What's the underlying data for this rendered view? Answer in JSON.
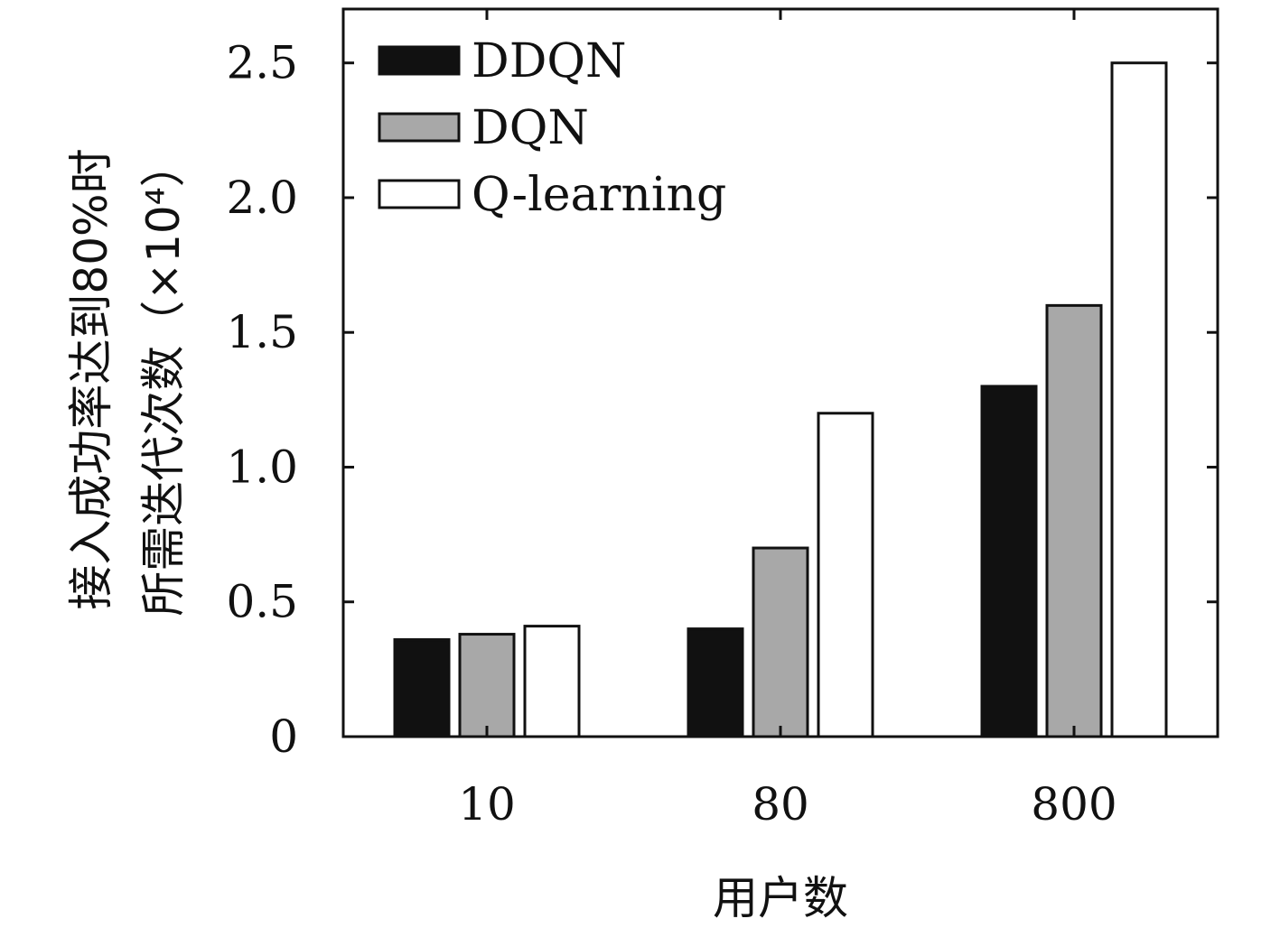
{
  "chart_data": {
    "type": "bar",
    "categories": [
      "10",
      "80",
      "800"
    ],
    "series": [
      {
        "name": "DDQN",
        "values": [
          0.36,
          0.4,
          1.3
        ],
        "color": "#111111"
      },
      {
        "name": "DQN",
        "values": [
          0.38,
          0.7,
          1.6
        ],
        "color": "#a8a8a8"
      },
      {
        "name": "Q-learning",
        "values": [
          0.41,
          1.2,
          2.5
        ],
        "color": "#ffffff"
      }
    ],
    "xlabel": "用户数",
    "ylabel_line1": "接入成功率达到80%时",
    "ylabel_line2": "所需迭代次数（×10⁴）",
    "ylim": [
      0,
      2.7
    ],
    "yticks": [
      0,
      0.5,
      1.0,
      1.5,
      2.0,
      2.5
    ],
    "ytick_labels": [
      "0",
      "0.5",
      "1.0",
      "1.5",
      "2.0",
      "2.5"
    ],
    "grid": false,
    "legend_position": "top-left"
  }
}
